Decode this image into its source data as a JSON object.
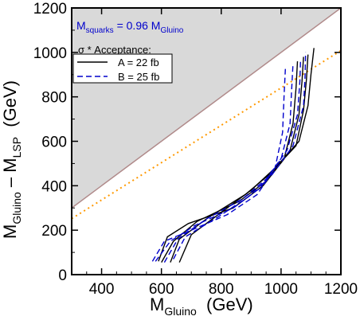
{
  "chart_data": {
    "type": "line",
    "xlim": [
      300,
      1200
    ],
    "ylim": [
      0,
      1200
    ],
    "x_ticks": [
      400,
      600,
      800,
      1000,
      1200
    ],
    "y_ticks": [
      0,
      200,
      400,
      600,
      800,
      1000,
      1200
    ],
    "xlabel": {
      "main": "M",
      "sub": "Gluino",
      "tail": "  (GeV)"
    },
    "ylabel": {
      "p1": "M",
      "s1": "Gluino",
      "p2": " – M",
      "s2": "LSP",
      "p3": "  (GeV)"
    },
    "annotation": {
      "main": "M",
      "sub1": "squarks",
      "mid": " = 0.96 M",
      "sub2": "Gluino"
    },
    "legend": {
      "title": "σ * Acceptance:",
      "entries": [
        {
          "label": "A = 22 fb",
          "color": "#000000",
          "dash": "solid"
        },
        {
          "label": "B = 25 fb",
          "color": "#0000cc",
          "dash": "dashed"
        }
      ],
      "placement": "top-left"
    },
    "excluded_region": {
      "color": "#d9d9d9",
      "boundary_color": "#b08a8a",
      "boundary": [
        [
          300,
          300
        ],
        [
          1200,
          1200
        ]
      ]
    },
    "dotted_line": {
      "color": "#ff9900",
      "points": [
        [
          300,
          252
        ],
        [
          1200,
          1008
        ]
      ]
    },
    "series": [
      {
        "group": "A",
        "color": "#000000",
        "dash": "solid",
        "points": [
          [
            660,
            55
          ],
          [
            700,
            180
          ],
          [
            800,
            280
          ],
          [
            900,
            380
          ],
          [
            980,
            480
          ],
          [
            1060,
            600
          ],
          [
            1090,
            760
          ],
          [
            1100,
            900
          ],
          [
            1110,
            1020
          ]
        ]
      },
      {
        "group": "A",
        "color": "#000000",
        "dash": "solid",
        "points": [
          [
            630,
            55
          ],
          [
            660,
            160
          ],
          [
            760,
            260
          ],
          [
            880,
            360
          ],
          [
            960,
            450
          ],
          [
            1050,
            580
          ],
          [
            1075,
            740
          ],
          [
            1085,
            880
          ],
          [
            1090,
            990
          ]
        ]
      },
      {
        "group": "A",
        "color": "#000000",
        "dash": "solid",
        "points": [
          [
            600,
            55
          ],
          [
            640,
            150
          ],
          [
            720,
            240
          ],
          [
            860,
            330
          ],
          [
            950,
            420
          ],
          [
            1030,
            560
          ],
          [
            1060,
            720
          ],
          [
            1070,
            870
          ],
          [
            1075,
            980
          ]
        ]
      },
      {
        "group": "A",
        "color": "#000000",
        "dash": "solid",
        "points": [
          [
            590,
            60
          ],
          [
            620,
            170
          ],
          [
            690,
            230
          ],
          [
            840,
            300
          ],
          [
            940,
            400
          ],
          [
            1010,
            520
          ],
          [
            1040,
            680
          ],
          [
            1050,
            840
          ],
          [
            1055,
            960
          ]
        ]
      },
      {
        "group": "B",
        "color": "#0000cc",
        "dash": "dashed",
        "points": [
          [
            640,
            70
          ],
          [
            680,
            170
          ],
          [
            790,
            260
          ],
          [
            890,
            350
          ],
          [
            970,
            450
          ],
          [
            1040,
            580
          ],
          [
            1075,
            760
          ],
          [
            1080,
            880
          ],
          [
            1082,
            1000
          ]
        ]
      },
      {
        "group": "B",
        "color": "#0000cc",
        "dash": "dashed",
        "points": [
          [
            610,
            55
          ],
          [
            655,
            160
          ],
          [
            750,
            250
          ],
          [
            870,
            340
          ],
          [
            950,
            430
          ],
          [
            1020,
            560
          ],
          [
            1055,
            720
          ],
          [
            1063,
            870
          ],
          [
            1065,
            960
          ]
        ]
      },
      {
        "group": "B",
        "color": "#0000cc",
        "dash": "dashed",
        "points": [
          [
            580,
            60
          ],
          [
            630,
            150
          ],
          [
            710,
            220
          ],
          [
            840,
            300
          ],
          [
            930,
            390
          ],
          [
            1000,
            520
          ],
          [
            1030,
            680
          ],
          [
            1035,
            820
          ],
          [
            1040,
            950
          ]
        ]
      },
      {
        "group": "B",
        "color": "#0000cc",
        "dash": "dashed",
        "points": [
          [
            570,
            60
          ],
          [
            610,
            150
          ],
          [
            700,
            200
          ],
          [
            820,
            270
          ],
          [
            920,
            360
          ],
          [
            980,
            480
          ],
          [
            1005,
            640
          ],
          [
            1010,
            800
          ],
          [
            1015,
            940
          ]
        ]
      }
    ]
  }
}
